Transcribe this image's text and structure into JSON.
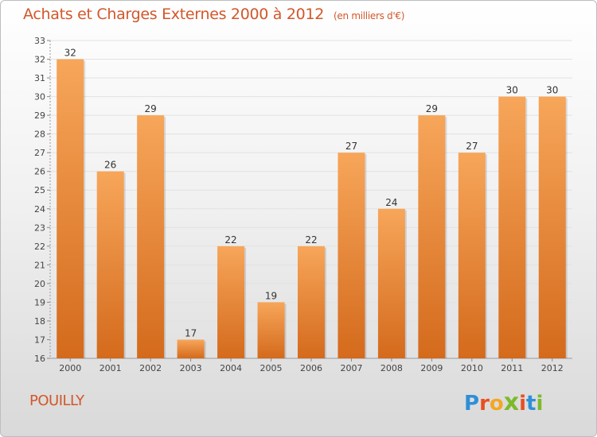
{
  "title": "Achats et Charges Externes 2000 à 2012",
  "subtitle": "(en milliers d'€)",
  "commune": "POUILLY",
  "logo": {
    "letters": [
      "P",
      "r",
      "o",
      "x",
      "i",
      "t",
      "i"
    ],
    "colors": [
      "#2f8fd8",
      "#e94f1f",
      "#f5a623",
      "#7cba2c",
      "#e94f1f",
      "#2f8fd8",
      "#7cba2c"
    ]
  },
  "colors": {
    "title": "#d2572a",
    "bar_top": "#f7a65a",
    "bar_bottom": "#d46a1c"
  },
  "chart_data": {
    "type": "bar",
    "title": "Achats et Charges Externes 2000 à 2012",
    "subtitle": "(en milliers d'€)",
    "categories": [
      "2000",
      "2001",
      "2002",
      "2003",
      "2004",
      "2005",
      "2006",
      "2007",
      "2008",
      "2009",
      "2010",
      "2011",
      "2012"
    ],
    "values": [
      32,
      26,
      29,
      17,
      22,
      19,
      22,
      27,
      24,
      29,
      27,
      30,
      30
    ],
    "ylim": [
      16,
      33
    ],
    "yticks": [
      16,
      17,
      18,
      19,
      20,
      21,
      22,
      23,
      24,
      25,
      26,
      27,
      28,
      29,
      30,
      31,
      32,
      33
    ],
    "grid": true,
    "data_labels": true
  }
}
